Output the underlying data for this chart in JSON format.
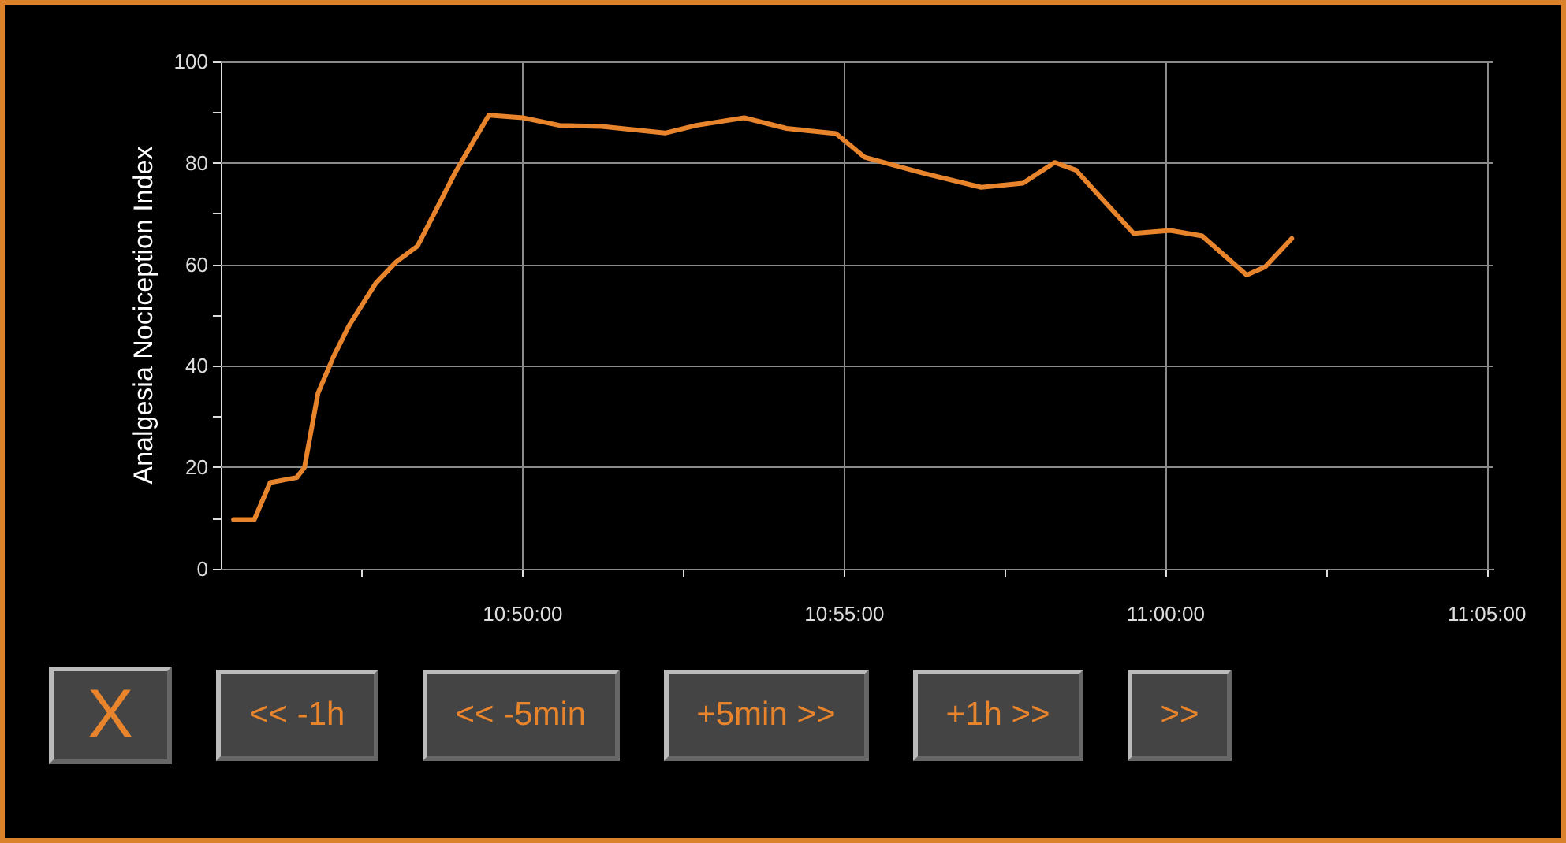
{
  "chart_data": {
    "type": "line",
    "ylabel": "Analgesia Nociception Index",
    "x": [
      10.7583,
      10.7637,
      10.7678,
      10.7747,
      10.7767,
      10.7802,
      10.7842,
      10.7883,
      10.7952,
      10.8005,
      10.806,
      10.8102,
      10.8157,
      10.8197,
      10.8245,
      10.8333,
      10.8428,
      10.8538,
      10.8702,
      10.8783,
      10.8907,
      10.9017,
      10.9145,
      10.922,
      10.937,
      10.9522,
      10.963,
      10.9712,
      10.9767,
      10.9917,
      11.0012,
      11.0095,
      11.021,
      11.0258,
      11.0327
    ],
    "series": [
      {
        "color": "#e8842c",
        "values": [
          9.7,
          9.7,
          17,
          18,
          20,
          34.6,
          41.8,
          48,
          56.3,
          60.5,
          63.6,
          69.8,
          78,
          83.2,
          89.4,
          88.9,
          87.4,
          87.2,
          85.9,
          87.4,
          88.9,
          86.8,
          85.8,
          81.1,
          78,
          75.2,
          76,
          80.1,
          78.6,
          66.1,
          66.7,
          65.6,
          57.9,
          59.5,
          65.1
        ]
      }
    ],
    "xlim": [
      10.755,
      11.085
    ],
    "xticks": [
      {
        "value": 10.7917,
        "label": null
      },
      {
        "value": 10.8333,
        "label": "10:50:00"
      },
      {
        "value": 10.875,
        "label": null
      },
      {
        "value": 10.9167,
        "label": "10:55:00"
      },
      {
        "value": 10.9583,
        "label": null
      },
      {
        "value": 11,
        "label": "11:00:00"
      },
      {
        "value": 11.0417,
        "label": null
      },
      {
        "value": 11.0833,
        "label": "11:05:00"
      }
    ],
    "ylim": [
      0,
      100
    ],
    "yticks": [
      0,
      {
        "value": 10,
        "label": null
      },
      20,
      {
        "value": 30,
        "label": null
      },
      40,
      {
        "value": 50,
        "label": null
      },
      60,
      {
        "value": 70,
        "label": null
      },
      80,
      {
        "value": 90,
        "label": null
      },
      100
    ],
    "grid": true,
    "marker": "none",
    "line_style": "solid",
    "annotations": [
      "X",
      "<< -1h",
      "<< -5min",
      "+5min >>",
      "+1h >>",
      ">>"
    ]
  }
}
